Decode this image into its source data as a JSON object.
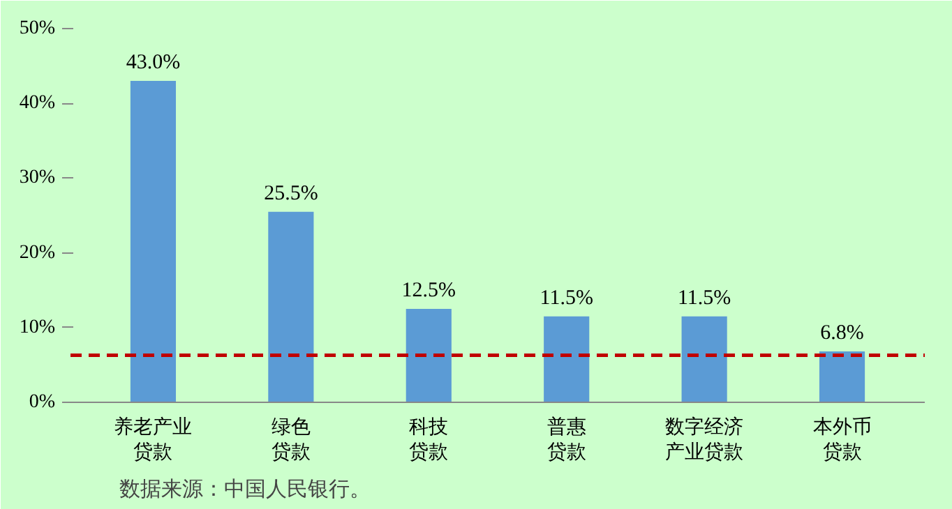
{
  "chart_data": {
    "type": "bar",
    "categories": [
      "养老产业贷款",
      "绿色贷款",
      "科技贷款",
      "普惠贷款",
      "数字经济产业贷款",
      "本外币贷款"
    ],
    "values": [
      43.0,
      25.5,
      12.5,
      11.5,
      11.5,
      6.8
    ],
    "color": "#5b9bd5",
    "value_labels": [
      "43.0%",
      "25.5%",
      "12.5%",
      "11.5%",
      "11.5%",
      "6.8%"
    ],
    "ylim": [
      0,
      50
    ],
    "yticks": [
      {
        "value": 0,
        "label": "0%"
      },
      {
        "value": 10,
        "label": "10%"
      },
      {
        "value": 20,
        "label": "20%"
      },
      {
        "value": 30,
        "label": "30%"
      },
      {
        "value": 40,
        "label": "40%"
      },
      {
        "value": 50,
        "label": "50%"
      }
    ],
    "ref_lines": [
      {
        "axis": "y",
        "value": 6.3,
        "color": "#c00000",
        "line_style": "dashed"
      }
    ],
    "grid": false,
    "annotations": [
      "数据来源：中国人民银行。"
    ]
  }
}
